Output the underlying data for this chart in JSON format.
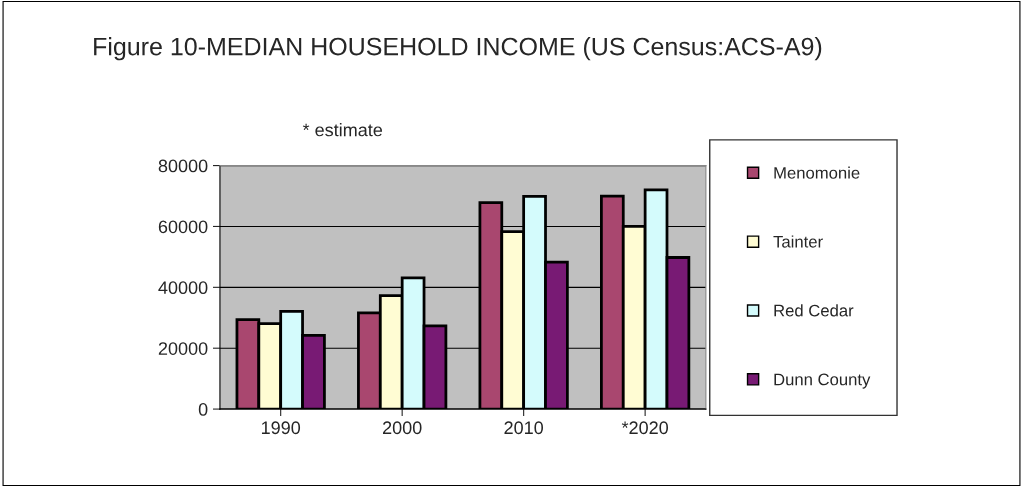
{
  "chart_data": {
    "type": "bar",
    "title": "Figure 10-MEDIAN HOUSEHOLD INCOME (US Census:ACS-A9)",
    "subtitle": "* estimate",
    "categories": [
      "1990",
      "2000",
      "2010",
      "*2020"
    ],
    "series": [
      {
        "name": "Menomonie",
        "color": "#a9476f",
        "values": [
          29400,
          31600,
          67800,
          70000
        ]
      },
      {
        "name": "Tainter",
        "color": "#fffcd3",
        "values": [
          28100,
          37300,
          58300,
          60000
        ]
      },
      {
        "name": "Red Cedar",
        "color": "#d4fbfc",
        "values": [
          32100,
          43100,
          69900,
          72000
        ]
      },
      {
        "name": "Dunn County",
        "color": "#781a74",
        "values": [
          24200,
          27300,
          48300,
          49800
        ]
      }
    ],
    "ylim": [
      0,
      80000
    ],
    "yticks": [
      0,
      20000,
      40000,
      60000,
      80000
    ],
    "grid": "y",
    "legend": "right"
  }
}
